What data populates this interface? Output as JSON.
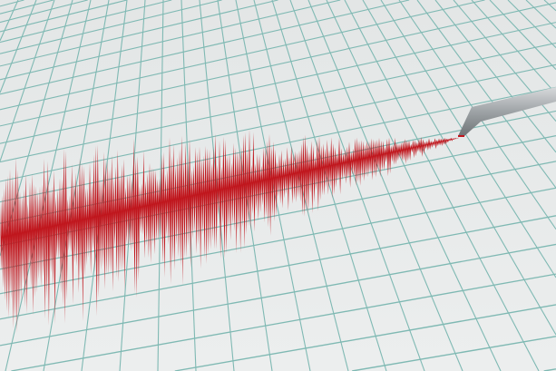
{
  "scene": {
    "subject": "seismograph-trace",
    "colors": {
      "paper": "#e7e9e9",
      "grid": "#7fb9b3",
      "trace": "#c0161d",
      "stylus": "#a9adb0"
    }
  }
}
